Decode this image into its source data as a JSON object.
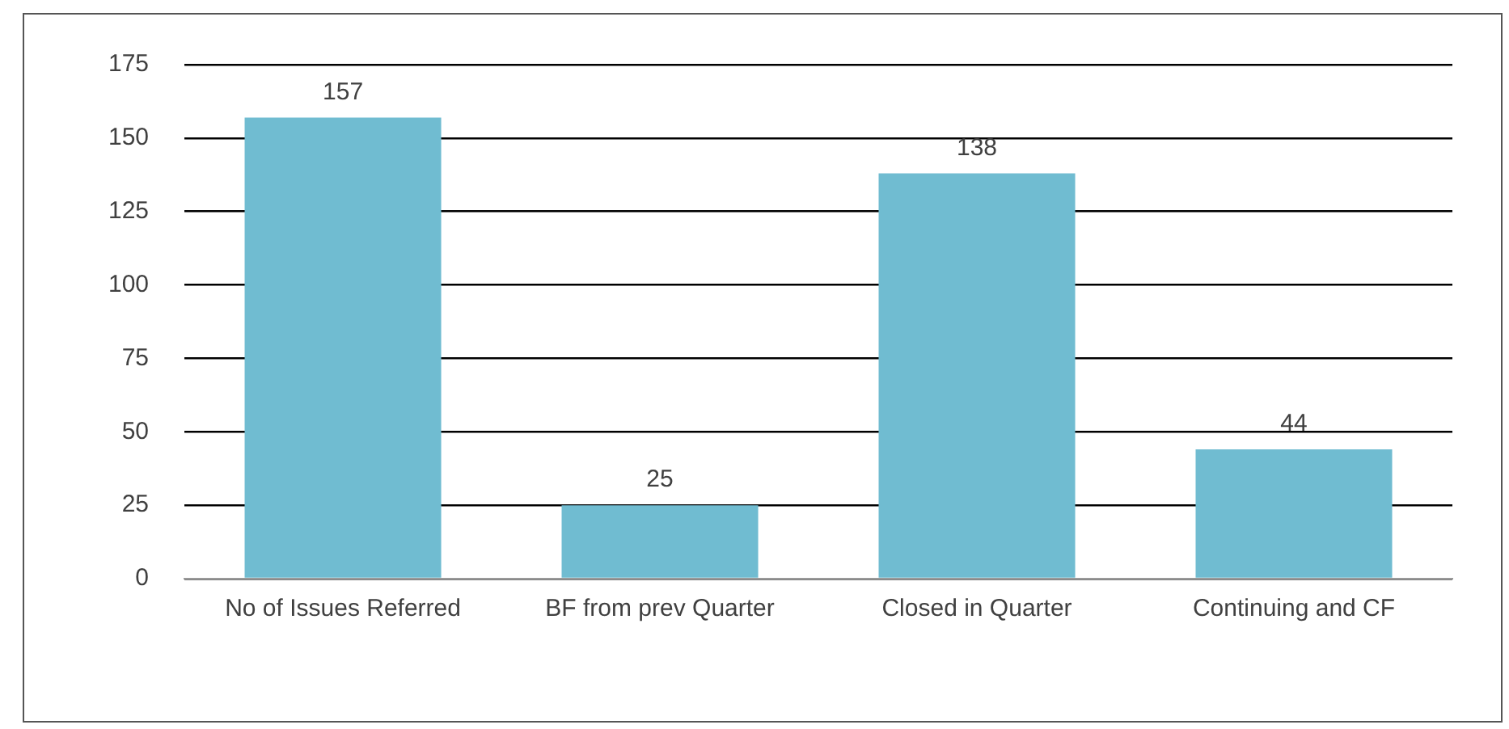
{
  "chart_data": {
    "type": "bar",
    "categories": [
      "No of Issues Referred",
      "BF from prev Quarter",
      "Closed in Quarter",
      "Continuing and CF"
    ],
    "values": [
      157,
      25,
      138,
      44
    ],
    "color": "#70bcd1",
    "ylim": [
      0,
      175
    ],
    "yticks": [
      0,
      25,
      50,
      75,
      100,
      125,
      150,
      175
    ],
    "grid": "y",
    "data_labels": true,
    "legend": false
  }
}
